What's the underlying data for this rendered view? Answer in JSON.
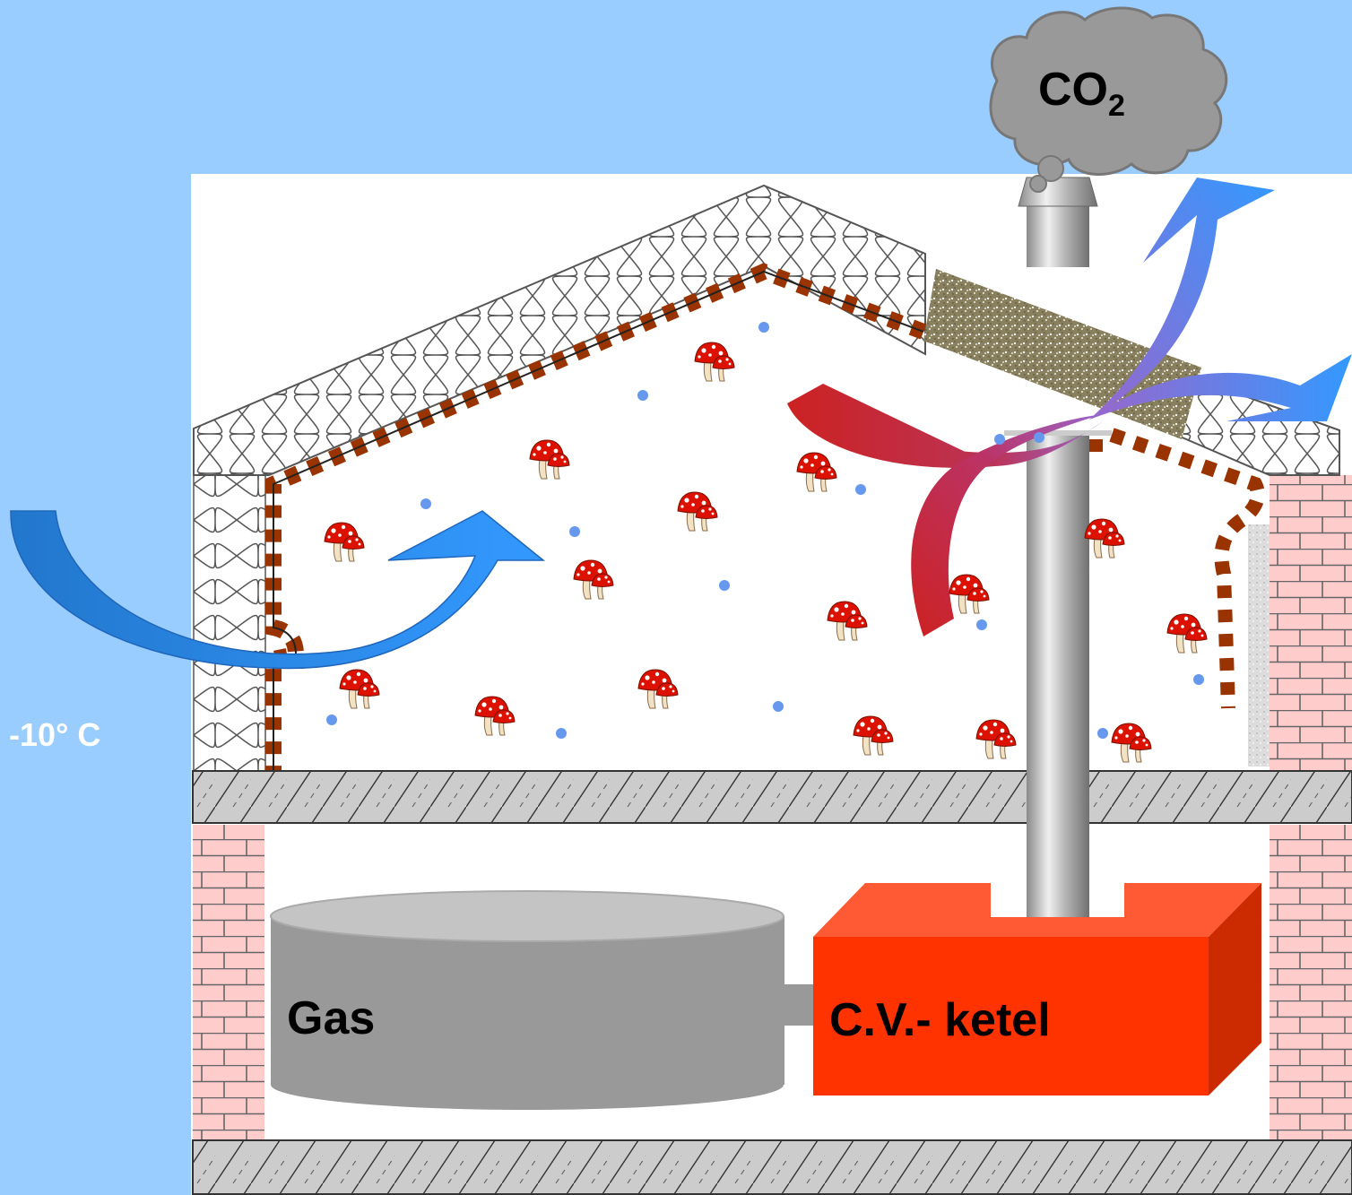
{
  "labels": {
    "outside_temperature": "-10° C",
    "exhaust_gas_main": "CO",
    "exhaust_gas_subscript": "2",
    "gas_tank": "Gas",
    "boiler": "C.V.- ketel"
  },
  "colors": {
    "sky": "#99ccff",
    "interior": "#ffffff",
    "brick": "#ffcccc",
    "vapor_stripe": "#993300",
    "concrete": "#cccccc",
    "gas_tank": "#999999",
    "boiler_front": "#ff3300",
    "boiler_top": "#ff5a33",
    "boiler_side": "#cc2a00",
    "cold_air_arrow": "#3399ff",
    "warm_air_arrow": "#cc2222",
    "cloud": "#999999",
    "moisture_dot": "#6699ee"
  },
  "icons": {
    "mold_icon": "red-spotted-mushroom",
    "insulation": "wool-loops",
    "moisture": "dot"
  }
}
